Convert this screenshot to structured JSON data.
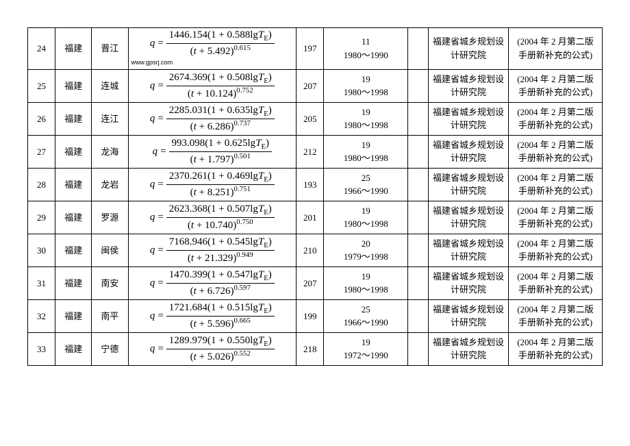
{
  "columns": {
    "idx_width": 28,
    "prov_width": 42,
    "city_width": 42,
    "formula_width": 240,
    "v_width": 28,
    "years_width": 115,
    "empty_width": 18,
    "inst_width": 110,
    "note_width": 130
  },
  "style": {
    "border_color": "#000000",
    "background_color": "#ffffff",
    "text_color": "#000000",
    "body_font": "SimSun",
    "formula_font": "Times New Roman",
    "cell_fontsize": 13,
    "formula_fontsize": 15
  },
  "institute": "福建省城乡规划设计研究院",
  "note": "(2004 年 2 月第二版手册新补充的公式)",
  "watermark": "www.gpsrj.com",
  "rows": [
    {
      "idx": "24",
      "prov": "福建",
      "city": "晋江",
      "A": "1446.154",
      "B": "0.588",
      "C": "5.492",
      "n": "0.615",
      "val": "197",
      "yrs_n": "11",
      "yrs_range": "1980～1990",
      "wm": true
    },
    {
      "idx": "25",
      "prov": "福建",
      "city": "连城",
      "A": "2674.369",
      "B": "0.508",
      "C": "10.124",
      "n": "0.752",
      "val": "207",
      "yrs_n": "19",
      "yrs_range": "1980～1998"
    },
    {
      "idx": "26",
      "prov": "福建",
      "city": "连江",
      "A": "2285.031",
      "B": "0.635",
      "C": "6.286",
      "n": "0.737",
      "val": "205",
      "yrs_n": "19",
      "yrs_range": "1980～1998"
    },
    {
      "idx": "27",
      "prov": "福建",
      "city": "龙海",
      "A": "993.098",
      "B": "0.625",
      "C": "1.797",
      "n": "0.501",
      "val": "212",
      "yrs_n": "19",
      "yrs_range": "1980～1998"
    },
    {
      "idx": "28",
      "prov": "福建",
      "city": "龙岩",
      "A": "2370.261",
      "B": "0.469",
      "C": "8.251",
      "n": "0.751",
      "val": "193",
      "yrs_n": "25",
      "yrs_range": "1966～1990"
    },
    {
      "idx": "29",
      "prov": "福建",
      "city": "罗源",
      "A": "2623.368",
      "B": "0.507",
      "C": "10.740",
      "n": "0.750",
      "val": "201",
      "yrs_n": "19",
      "yrs_range": "1980～1998"
    },
    {
      "idx": "30",
      "prov": "福建",
      "city": "闽侯",
      "A": "7168.946",
      "B": "0.545",
      "C": "21.329",
      "n": "0.949",
      "val": "210",
      "yrs_n": "20",
      "yrs_range": "1979～1998"
    },
    {
      "idx": "31",
      "prov": "福建",
      "city": "南安",
      "A": "1470.399",
      "B": "0.547",
      "C": "6.726",
      "n": "0.597",
      "val": "207",
      "yrs_n": "19",
      "yrs_range": "1980～1998"
    },
    {
      "idx": "32",
      "prov": "福建",
      "city": "南平",
      "A": "1721.684",
      "B": "0.515",
      "C": "5.596",
      "n": "0.665",
      "val": "199",
      "yrs_n": "25",
      "yrs_range": "1966～1990"
    },
    {
      "idx": "33",
      "prov": "福建",
      "city": "宁德",
      "A": "1289.979",
      "B": "0.550",
      "C": "5.026",
      "n": "0.552",
      "val": "218",
      "yrs_n": "19",
      "yrs_range": "1972～1990"
    }
  ]
}
